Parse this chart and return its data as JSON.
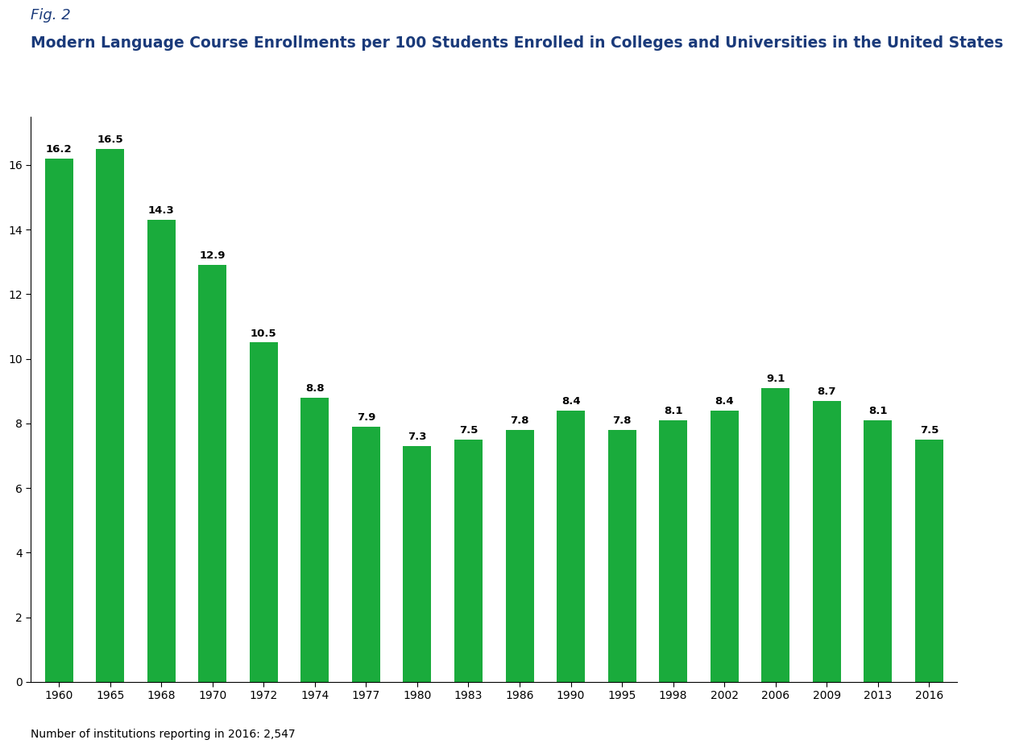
{
  "fig_label": "Fig. 2",
  "title": "Modern Language Course Enrollments per 100 Students Enrolled in Colleges and Universities in the United States",
  "years": [
    "1960",
    "1965",
    "1968",
    "1970",
    "1972",
    "1974",
    "1977",
    "1980",
    "1983",
    "1986",
    "1990",
    "1995",
    "1998",
    "2002",
    "2006",
    "2009",
    "2013",
    "2016"
  ],
  "values": [
    16.2,
    16.5,
    14.3,
    12.9,
    10.5,
    8.8,
    7.9,
    7.3,
    7.5,
    7.8,
    8.4,
    7.8,
    8.1,
    8.4,
    9.1,
    8.7,
    8.1,
    7.5
  ],
  "bar_color": "#1aab3c",
  "title_color": "#1a3a7a",
  "fig_label_color": "#1a3a7a",
  "background_color": "#ffffff",
  "ylim": [
    0,
    17.5
  ],
  "yticks": [
    0,
    2,
    4,
    6,
    8,
    10,
    12,
    14,
    16
  ],
  "footnote": "Number of institutions reporting in 2016: 2,547",
  "title_fontsize": 13.5,
  "fig_label_fontsize": 13,
  "bar_value_fontsize": 9.5,
  "axis_fontsize": 10,
  "footnote_fontsize": 10
}
